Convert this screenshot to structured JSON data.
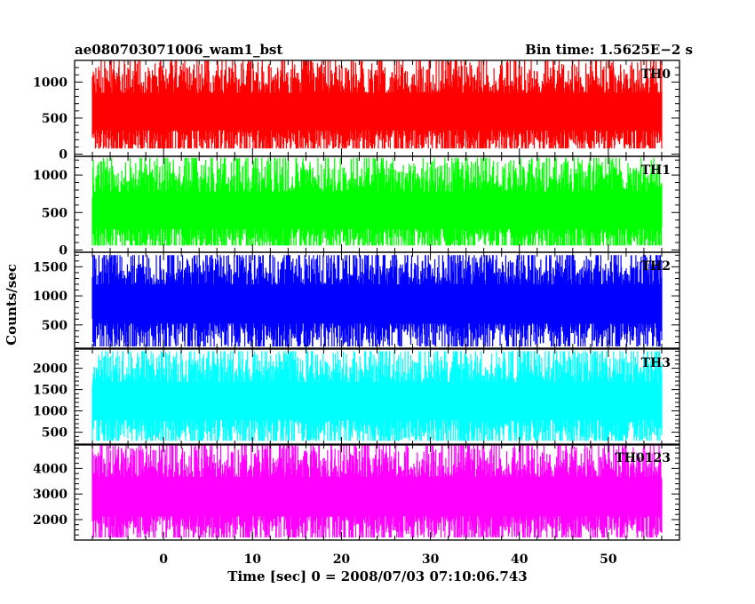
{
  "header": {
    "title": "ae080703071006_wam1_bst",
    "bin_time": "Bin time: 1.5625E−2 s"
  },
  "chart_data": {
    "type": "line",
    "title": "ae080703071006_wam1_bst",
    "subtitle": "Bin time: 1.5625E−2 s",
    "xlabel": "Time [sec] 0 = 2008/07/03 07:10:06.743",
    "ylabel": "Counts/sec",
    "xlim": [
      -10,
      58
    ],
    "data_x_range": [
      -8,
      56
    ],
    "x_ticks": [
      0,
      10,
      20,
      30,
      40,
      50
    ],
    "grid": false,
    "legend": "none",
    "panels": [
      {
        "name": "TH0",
        "color": "#ff0000",
        "ylim": [
          -30,
          1300
        ],
        "y_ticks": [
          0,
          500,
          1000
        ],
        "median": 590,
        "min": 80,
        "max": 1300
      },
      {
        "name": "TH1",
        "color": "#00ff00",
        "ylim": [
          -30,
          1250
        ],
        "y_ticks": [
          0,
          500,
          1000
        ],
        "median": 530,
        "min": 60,
        "max": 1230
      },
      {
        "name": "TH2",
        "color": "#0000ff",
        "ylim": [
          100,
          1750
        ],
        "y_ticks": [
          500,
          1000,
          1500
        ],
        "median": 860,
        "min": 130,
        "max": 1700
      },
      {
        "name": "TH3",
        "color": "#00ffff",
        "ylim": [
          200,
          2450
        ],
        "y_ticks": [
          500,
          1000,
          1500,
          2000
        ],
        "median": 1230,
        "min": 300,
        "max": 2400
      },
      {
        "name": "TH0123",
        "color": "#ff00ff",
        "ylim": [
          1200,
          4950
        ],
        "y_ticks": [
          2000,
          3000,
          4000
        ],
        "median": 2900,
        "min": 1300,
        "max": 4900
      }
    ]
  }
}
